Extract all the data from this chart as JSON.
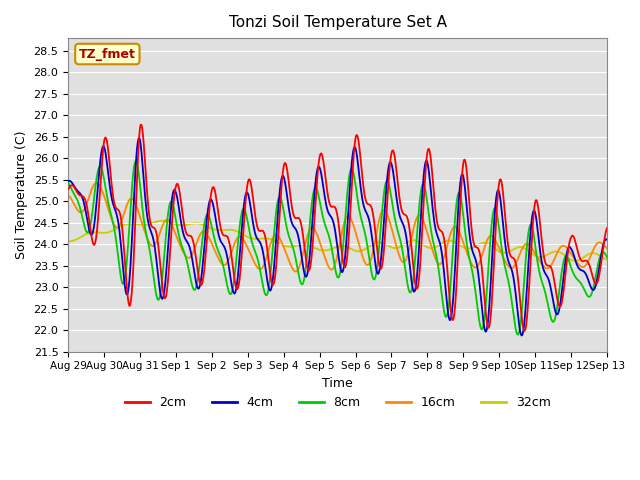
{
  "title": "Tonzi Soil Temperature Set A",
  "xlabel": "Time",
  "ylabel": "Soil Temperature (C)",
  "ylim": [
    21.5,
    28.8
  ],
  "colors": {
    "2cm": "#FF0000",
    "4cm": "#0000CC",
    "8cm": "#00CC00",
    "16cm": "#FF8800",
    "32cm": "#CCCC00"
  },
  "legend_label": "TZ_fmet",
  "legend_bg": "#FFFFCC",
  "legend_border": "#CC8800",
  "x_tick_labels": [
    "Aug 29",
    "Aug 30",
    "Aug 31",
    "Sep 1",
    "Sep 2",
    "Sep 3",
    "Sep 4",
    "Sep 5",
    "Sep 6",
    "Sep 7",
    "Sep 8",
    "Sep 9",
    "Sep 10",
    "Sep 11",
    "Sep 12",
    "Sep 13"
  ],
  "bg_color": "#E0E0E0",
  "grid_color": "#FFFFFF"
}
